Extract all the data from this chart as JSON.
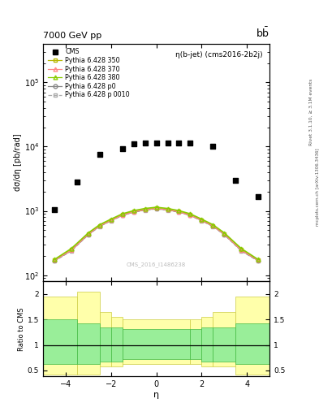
{
  "title_top": "7000 GeV pp",
  "title_top_right": "b$\\bar{b}$",
  "plot_title": "η(b-jet) (cms2016-2b2j)",
  "ylabel_main": "dσ/dη [pb/rad]",
  "ylabel_ratio": "Ratio to CMS",
  "xlabel": "η",
  "watermark": "CMS_2016_I1486238",
  "right_label": "Rivet 3.1.10, ≥ 3.1M events",
  "right_label2": "mcplots.cern.ch [arXiv:1306.3436]",
  "xlim": [
    -5.0,
    5.0
  ],
  "ylim_main": [
    80,
    400000
  ],
  "ylim_ratio": [
    0.38,
    2.25
  ],
  "cms_eta": [
    -4.5,
    -3.5,
    -2.5,
    -1.5,
    -1.0,
    -0.5,
    0.0,
    0.5,
    1.0,
    1.5,
    2.5,
    3.5,
    4.5
  ],
  "cms_data": [
    1050,
    2800,
    7500,
    9200,
    11000,
    11500,
    11500,
    11500,
    11500,
    11500,
    10000,
    3000,
    1650
  ],
  "py_eta": [
    -4.5,
    -3.75,
    -3.0,
    -2.5,
    -2.0,
    -1.5,
    -1.0,
    -0.5,
    0.0,
    0.5,
    1.0,
    1.5,
    2.0,
    2.5,
    3.0,
    3.75,
    4.5
  ],
  "py350": [
    170,
    250,
    440,
    590,
    720,
    870,
    980,
    1050,
    1100,
    1050,
    980,
    870,
    720,
    590,
    440,
    250,
    170
  ],
  "py370": [
    170,
    245,
    435,
    585,
    715,
    860,
    970,
    1045,
    1095,
    1045,
    970,
    860,
    715,
    585,
    435,
    245,
    170
  ],
  "py380": [
    175,
    260,
    455,
    610,
    745,
    900,
    1010,
    1090,
    1140,
    1090,
    1010,
    900,
    745,
    610,
    455,
    260,
    175
  ],
  "py_p0": [
    168,
    242,
    430,
    578,
    708,
    852,
    960,
    1034,
    1082,
    1034,
    960,
    852,
    708,
    578,
    430,
    242,
    168
  ],
  "py_p0010": [
    165,
    238,
    425,
    572,
    700,
    845,
    952,
    1025,
    1072,
    1025,
    952,
    845,
    700,
    572,
    425,
    238,
    165
  ],
  "color_350": "#b8b800",
  "color_370": "#ff8888",
  "color_380": "#88cc00",
  "color_p0": "#888888",
  "color_p0010": "#aaaaaa",
  "ratio_bins": [
    -5.0,
    -3.5,
    -2.5,
    -2.0,
    -1.5,
    1.5,
    2.0,
    2.5,
    3.5,
    5.0
  ],
  "ratio_yellow_low": [
    0.42,
    0.42,
    0.58,
    0.58,
    0.62,
    0.62,
    0.58,
    0.58,
    0.42
  ],
  "ratio_yellow_high": [
    1.95,
    2.05,
    1.65,
    1.55,
    1.5,
    1.5,
    1.55,
    1.65,
    1.95
  ],
  "ratio_green_low": [
    0.62,
    0.62,
    0.68,
    0.68,
    0.72,
    0.72,
    0.68,
    0.68,
    0.62
  ],
  "ratio_green_high": [
    1.5,
    1.42,
    1.35,
    1.35,
    1.32,
    1.32,
    1.35,
    1.35,
    1.42
  ]
}
